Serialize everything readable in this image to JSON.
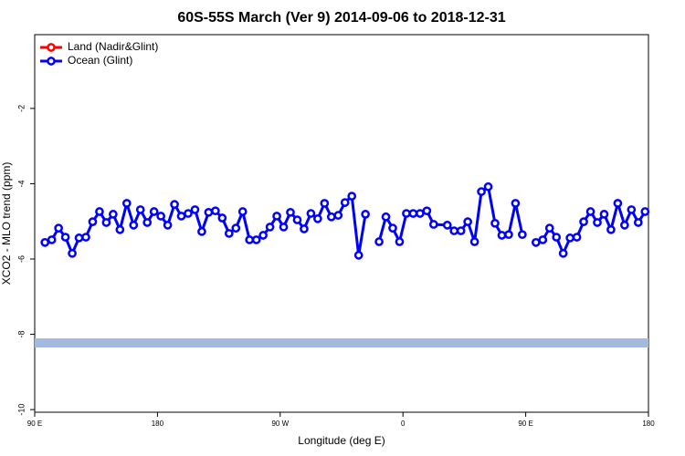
{
  "chart_data": {
    "type": "line",
    "title": "60S-55S March (Ver 9)   2014-09-06 to 2018-12-31",
    "x_label": "Longitude (deg E)",
    "y_label": "XCO2 - MLO trend (ppm)",
    "x": [
      97.5,
      102.5,
      107.5,
      112.5,
      117.5,
      122.5,
      127.5,
      132.5,
      137.5,
      142.5,
      147.5,
      152.5,
      157.5,
      162.5,
      167.5,
      172.5,
      177.5,
      182.5,
      187.5,
      192.5,
      197.5,
      202.5,
      207.5,
      212.5,
      217.5,
      222.5,
      227.5,
      232.5,
      237.5,
      242.5,
      247.5,
      252.5,
      257.5,
      262.5,
      267.5,
      272.5,
      277.5,
      282.5,
      287.5,
      292.5,
      297.5,
      302.5,
      307.5,
      312.5,
      317.5,
      322.5,
      327.5,
      332.5,
      337.5,
      342.5,
      347.5,
      352.5,
      357.5,
      362.5,
      367.5,
      372.5,
      377.5,
      382.5,
      392.5,
      397.5,
      402.5,
      407.5,
      412.5,
      417.5,
      422.5,
      427.5,
      432.5,
      437.5,
      442.5,
      447.5,
      452.5,
      457.5,
      462.5,
      467.5,
      472.5,
      477.5,
      482.5,
      487.5,
      492.5,
      497.5,
      502.5,
      507.5,
      512.5,
      517.5,
      522.5,
      527.5,
      532.5,
      537.5
    ],
    "series": [
      {
        "name": "Land (Nadir&Glint)",
        "color": "#ff0000",
        "values": [
          null,
          null,
          null,
          null,
          null,
          null,
          null,
          null,
          null,
          null,
          null,
          null,
          null,
          null,
          null,
          null,
          null,
          null,
          null,
          null,
          null,
          null,
          null,
          null,
          null,
          null,
          null,
          null,
          null,
          null,
          null,
          null,
          null,
          null,
          null,
          null,
          null,
          null,
          null,
          null,
          null,
          null,
          null,
          null,
          null,
          null,
          null,
          null,
          null,
          null,
          null,
          null,
          null,
          null,
          null,
          null,
          null,
          null,
          null,
          null,
          null,
          null,
          null,
          null,
          null,
          null,
          null,
          null,
          null,
          null,
          null,
          null,
          null,
          null,
          null,
          null,
          null,
          null,
          null,
          null,
          null,
          null,
          null,
          null,
          null,
          null,
          null,
          null
        ]
      },
      {
        "name": "Ocean (Glint)",
        "color": "#0000ff",
        "values": [
          -5.56,
          -5.49,
          -5.18,
          -5.42,
          -5.85,
          -5.44,
          -5.42,
          -5.01,
          -4.74,
          -5.03,
          -4.81,
          -5.22,
          -4.52,
          -5.1,
          -4.69,
          -5.03,
          -4.74,
          -4.86,
          -5.1,
          -4.55,
          -4.86,
          -4.79,
          -4.69,
          -5.27,
          -4.76,
          -4.72,
          -4.91,
          -5.32,
          -5.18,
          -4.74,
          -5.49,
          -5.49,
          -5.37,
          -5.15,
          -4.86,
          -5.15,
          -4.76,
          -4.96,
          -5.2,
          -4.79,
          -4.93,
          -4.52,
          -4.88,
          -4.84,
          -4.5,
          -4.33,
          -5.9,
          -4.81,
          null,
          -5.54,
          -4.88,
          -5.18,
          -5.54,
          -4.79,
          -4.79,
          -4.79,
          -4.72,
          -5.08,
          -5.1,
          -5.25,
          -5.25,
          -5.01,
          -5.54,
          -4.21,
          -4.08,
          -5.05,
          -5.37,
          -5.35,
          -4.52,
          -5.35,
          null,
          -5.56,
          -5.49,
          -5.18,
          -5.42,
          -5.85,
          -5.44,
          -5.42,
          -5.01,
          -4.74,
          -5.03,
          -4.81,
          -5.22,
          -4.52,
          -5.1,
          -4.69,
          -5.03,
          -4.74
        ]
      }
    ],
    "band": {
      "value": -8.23,
      "color": "#a3b9dd"
    },
    "xlim": [
      90,
      540
    ],
    "xticks": [
      {
        "value": 90,
        "label": "90 E"
      },
      {
        "value": 180,
        "label": "180"
      },
      {
        "value": 270,
        "label": "90 W"
      },
      {
        "value": 360,
        "label": "0"
      },
      {
        "value": 450,
        "label": "90 E"
      },
      {
        "value": 540,
        "label": "180"
      }
    ],
    "ylim": [
      -10.07,
      -0.04
    ],
    "yticks": [
      -10,
      -8,
      -6,
      -4,
      -2
    ],
    "legend": "top-left"
  }
}
